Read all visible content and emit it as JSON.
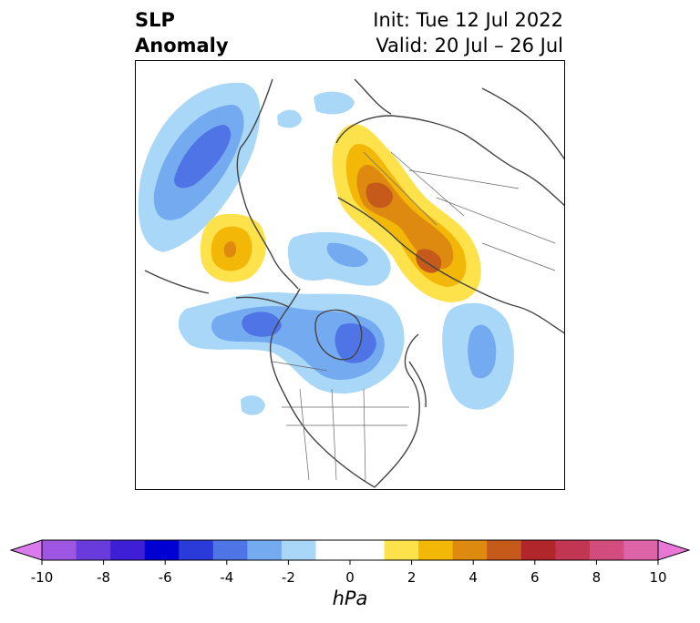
{
  "title": {
    "left_line1": "SLP",
    "left_line2": "Anomaly",
    "right_line1": "Init: Tue 12 Jul 2022",
    "right_line2": "Valid: 20 Jul – 26 Jul"
  },
  "colorbar": {
    "label": "hPa",
    "min": -10,
    "max": 10,
    "tick_values": [
      -10,
      -8,
      -6,
      -4,
      -2,
      0,
      2,
      4,
      6,
      8,
      10
    ],
    "tick_labels": [
      "-10",
      "-8",
      "-6",
      "-4",
      "-2",
      "0",
      "2",
      "4",
      "6",
      "8",
      "10"
    ],
    "extend": "both",
    "colors": [
      "#d97bed",
      "#9f56e3",
      "#6a3bdc",
      "#3f1fd6",
      "#0000d2",
      "#2a3bd9",
      "#4f74e6",
      "#74aaf0",
      "#a9d7f8",
      "#ffffff",
      "#ffffff",
      "#fde24b",
      "#f2b707",
      "#de8a10",
      "#c65a1a",
      "#b0262a",
      "#c03653",
      "#d24d7e",
      "#de64a8",
      "#e877d6"
    ]
  },
  "map": {
    "projection": "north-polar-stereographic",
    "field": "sea level pressure anomaly",
    "palette": {
      "neg1": "#a9d7f8",
      "neg2": "#74aaf0",
      "neg3": "#4f74e6",
      "pos1": "#fde24b",
      "pos2": "#f2b707",
      "pos3": "#de8a10",
      "pos4": "#c65a1a",
      "coast": "#444444"
    }
  }
}
